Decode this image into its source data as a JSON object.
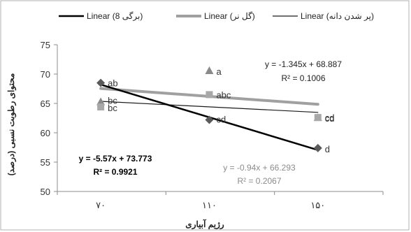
{
  "chart_data": {
    "type": "scatter",
    "xlabel": "رژیم آبیاری",
    "ylabel": "محتوای رطوبت نسبی (درصد)",
    "categories": [
      "۷۰",
      "۱۱۰",
      "۱۵۰"
    ],
    "x": [
      1,
      2,
      3
    ],
    "ylim": [
      50,
      75
    ],
    "yticks": [
      50,
      55,
      60,
      65,
      70,
      75
    ],
    "grid": false,
    "legend_position": "top",
    "series": [
      {
        "name": "گل نر",
        "color": "#8a8a8a",
        "marker": "triangle",
        "values": [
          65.3,
          70.6,
          62.6
        ],
        "labels": [
          "bc",
          "a",
          "cd"
        ],
        "trendline": {
          "legend_label": "Linear (گل نر)",
          "equation": "y = -1.345x + 68.887",
          "r2": "R² = 0.1006",
          "slope": -1.345,
          "intercept": 68.887,
          "color": "#a0a0a0"
        }
      },
      {
        "name": "پر شدن دانه",
        "color": "#a8a8a8",
        "marker": "square",
        "values": [
          64.4,
          66.5,
          62.6
        ],
        "labels": [
          "bc",
          "abc",
          "cd"
        ],
        "trendline": {
          "legend_label": "Linear (پر شدن دانه)",
          "equation": "y = -0.94x + 66.293",
          "r2": "R² = 0.2067",
          "slope": -0.94,
          "intercept": 66.293,
          "color": "#1a1a1a"
        }
      },
      {
        "name": "برگی 8",
        "color": "#5a5a5a",
        "marker": "diamond",
        "values": [
          68.5,
          62.2,
          57.4
        ],
        "labels": [
          "ab",
          "cd",
          "d"
        ],
        "trendline": {
          "legend_label": "Linear (برگی 8)",
          "equation": "y = -5.57x + 73.773",
          "r2": "R² = 0.9921",
          "slope": -5.57,
          "intercept": 73.773,
          "color": "#000000"
        }
      }
    ]
  }
}
